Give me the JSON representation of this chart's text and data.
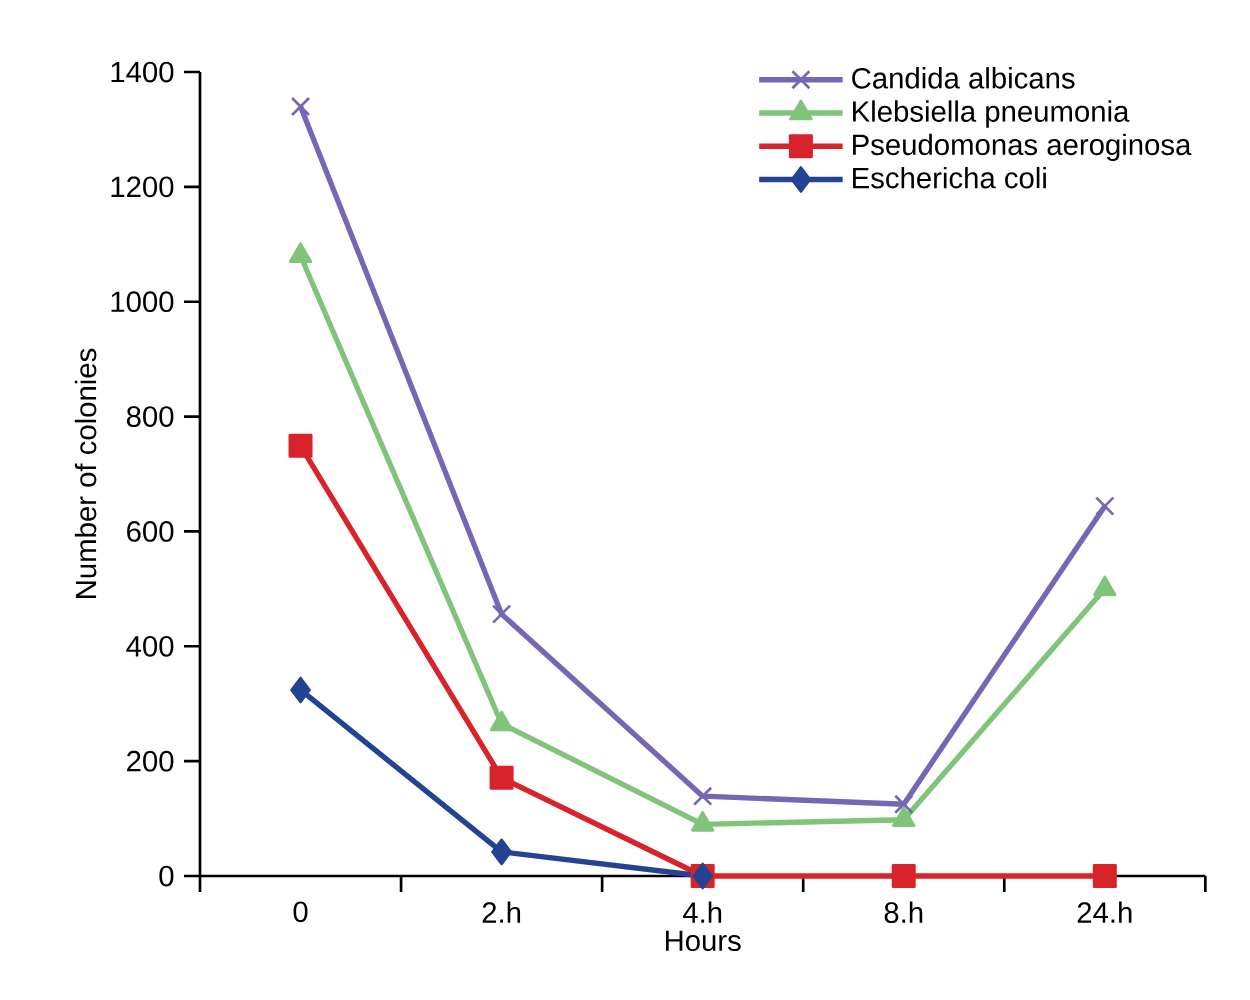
{
  "chart_data": {
    "type": "line",
    "xlabel": "Hours",
    "ylabel": "Number of colonies",
    "categories": [
      "0",
      "2.h",
      "4.h",
      "8.h",
      "24.h"
    ],
    "series": [
      {
        "name": "Candida albicans",
        "color": "#7468b4",
        "marker": "cross",
        "values": [
          1340,
          456,
          139,
          125,
          644
        ]
      },
      {
        "name": "Klebsiella pneumonia",
        "color": "#80c47a",
        "marker": "triangle",
        "values": [
          1080,
          265,
          90,
          98,
          500
        ]
      },
      {
        "name": "Pseudomonas aeroginosa",
        "color": "#d8232a",
        "marker": "square",
        "values": [
          749,
          171,
          0,
          0,
          0
        ]
      },
      {
        "name": "Eschericha coli",
        "color": "#234393",
        "marker": "diamond",
        "values": [
          324,
          42,
          0,
          null,
          null
        ]
      }
    ],
    "ylim": [
      0,
      1400
    ],
    "yticks": [
      0,
      200,
      400,
      600,
      800,
      1000,
      1200,
      1400
    ],
    "grid": false,
    "legend": "top right",
    "line_style": "solid"
  }
}
